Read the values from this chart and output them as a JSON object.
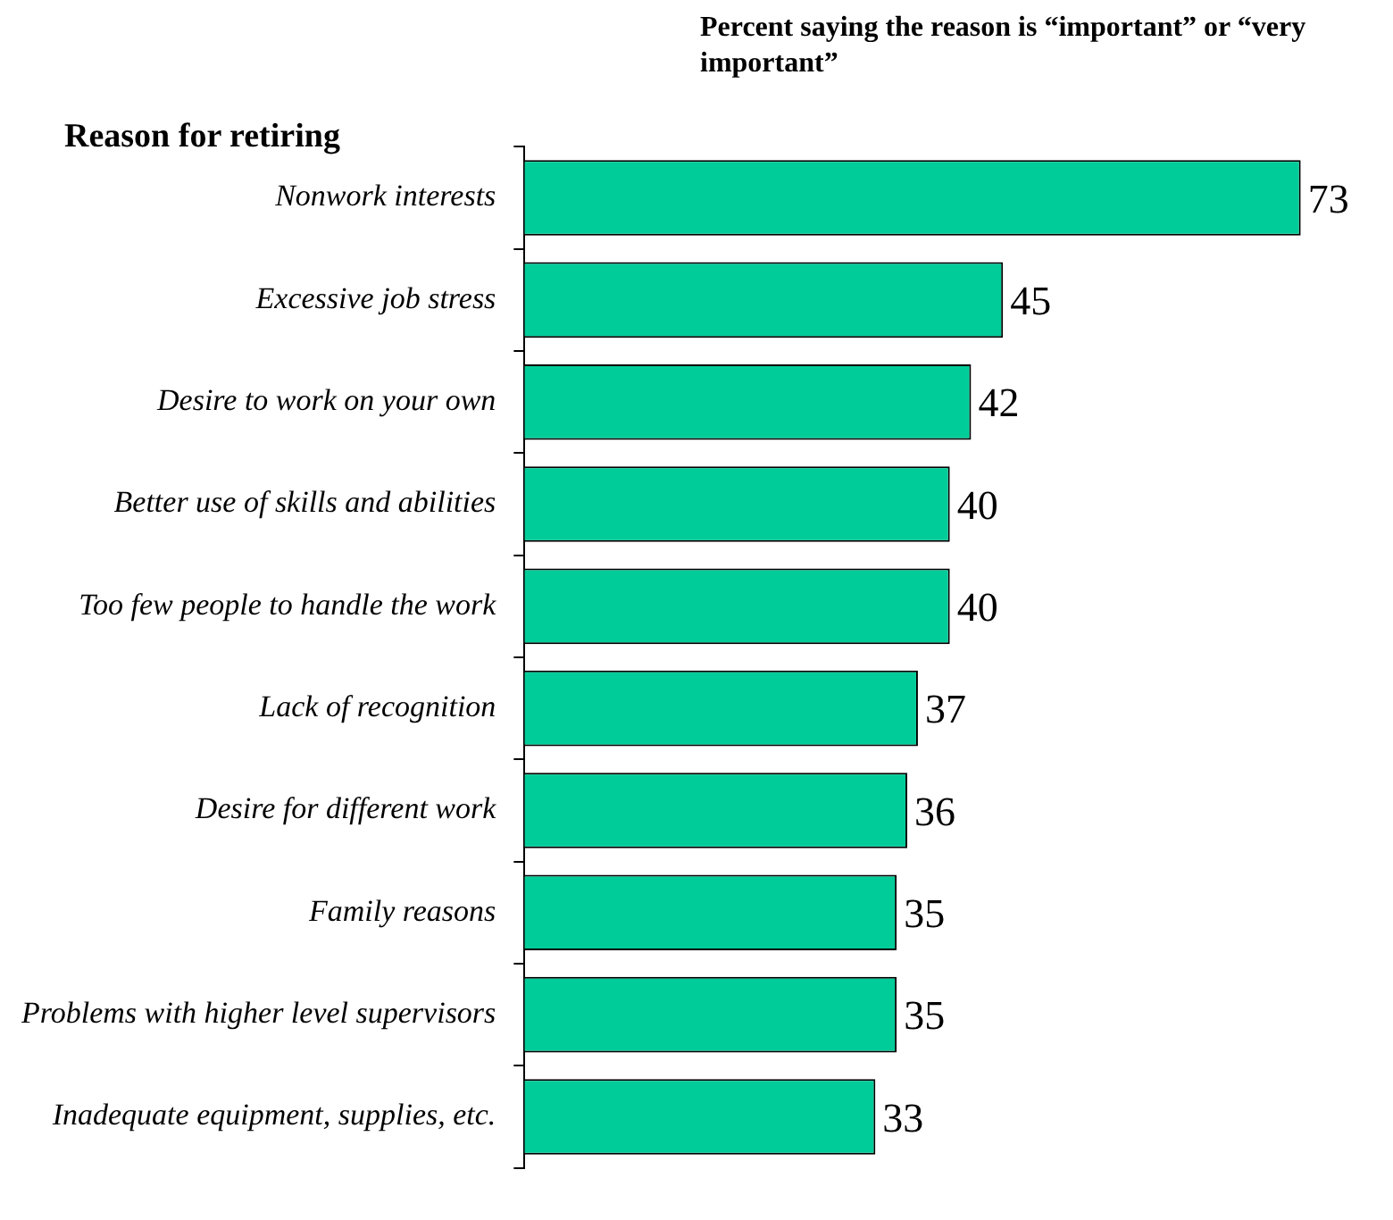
{
  "chart_data": {
    "type": "bar",
    "orientation": "horizontal",
    "xlabel": "Percent saying the reason is “important” or “very important”",
    "ylabel": "Reason for retiring",
    "categories": [
      "Nonwork interests",
      "Excessive job stress",
      "Desire to work on your own",
      "Better use of skills and abilities",
      "Too few people to handle the work",
      "Lack of recognition",
      "Desire for different work",
      "Family reasons",
      "Problems with higher level supervisors",
      "Inadequate equipment, supplies, etc."
    ],
    "values": [
      73,
      45,
      42,
      40,
      40,
      37,
      36,
      35,
      35,
      33
    ],
    "color": "#00cc99",
    "tick_labels": "y",
    "data_labels": true
  }
}
